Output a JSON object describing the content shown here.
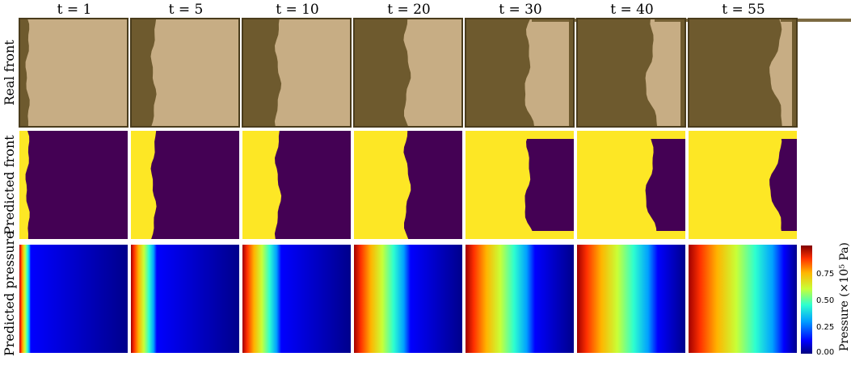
{
  "time_labels": [
    "t = 1",
    "t = 5",
    "t = 10",
    "t = 20",
    "t = 30",
    "t = 40",
    "t = 55"
  ],
  "row_labels": {
    "real": "Real front",
    "predicted": "Predicted front",
    "pressure": "Predicted pressure"
  },
  "colorbar": {
    "label": "Pressure (×10⁵ Pa)",
    "ticks": [
      "0.00",
      "0.25",
      "0.50",
      "0.75"
    ]
  },
  "colors": {
    "real_dark": "#6e5a2e",
    "real_light": "#c7ad84",
    "pred_filled": "#fde725",
    "pred_empty": "#440154"
  }
}
